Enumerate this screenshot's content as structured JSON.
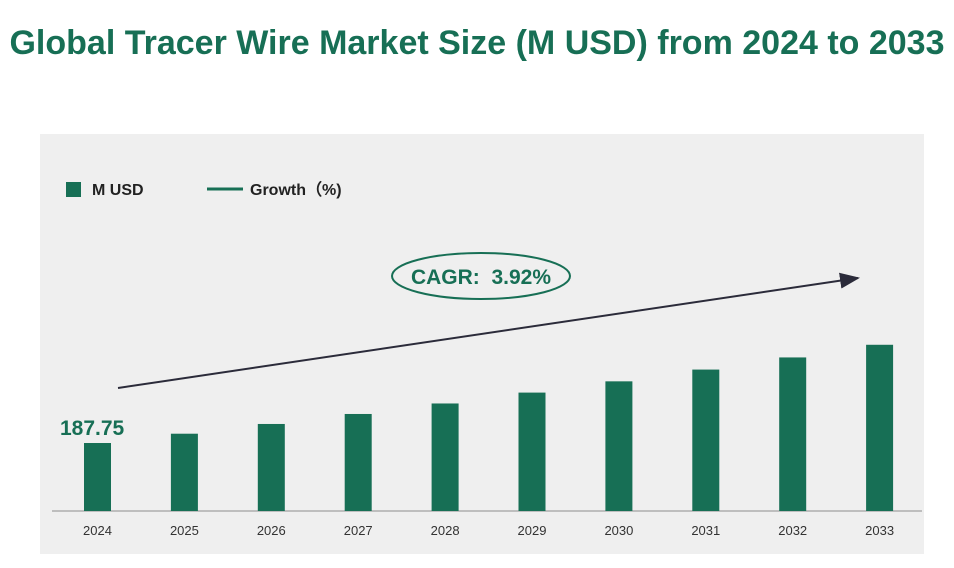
{
  "title": "Global Tracer Wire Market Size (M USD) from 2024 to 2033",
  "legend": {
    "bar_label": "M USD",
    "line_label": "Growth（%)"
  },
  "cagr_label": "CAGR:  3.92%",
  "first_value_label": "187.75",
  "colors": {
    "bar": "#176f55",
    "title": "#176f55",
    "arrow": "#2b2b3a",
    "panel": "#efefef"
  },
  "chart_data": {
    "type": "bar",
    "title": "Global Tracer Wire Market Size (M USD) from 2024 to 2033",
    "categories": [
      "2024",
      "2025",
      "2026",
      "2027",
      "2028",
      "2029",
      "2030",
      "2031",
      "2032",
      "2033"
    ],
    "series": [
      {
        "name": "M USD",
        "values": [
          187.75,
          195.1,
          202.8,
          210.7,
          219.0,
          227.6,
          236.5,
          245.8,
          255.4,
          265.4
        ]
      }
    ],
    "growth_series_name": "Growth（%)",
    "cagr": "3.92%",
    "grid": false,
    "legend_position": "top-left"
  }
}
